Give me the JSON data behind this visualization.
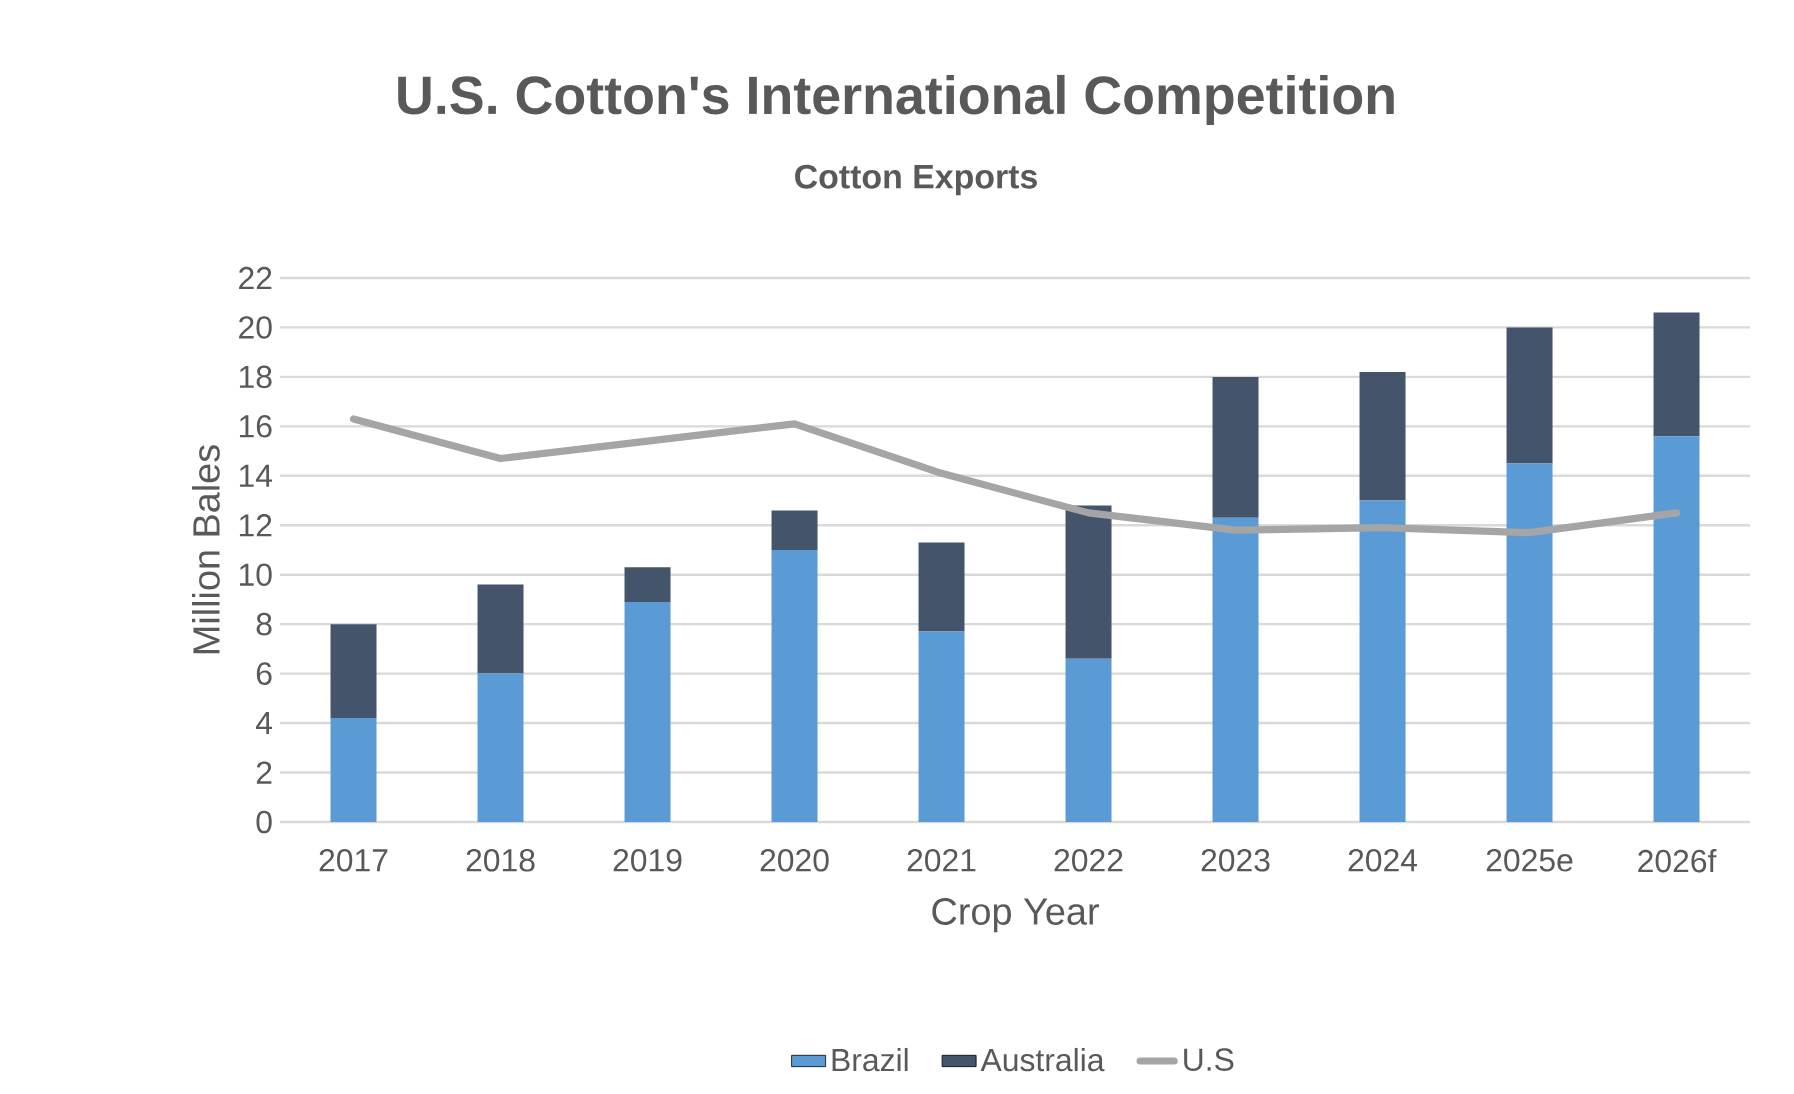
{
  "chart_data": {
    "type": "bar",
    "title": "U.S. Cotton's International Competition",
    "subtitle": "Cotton Exports",
    "xlabel": "Crop Year",
    "ylabel": "Million Bales",
    "categories": [
      "2017",
      "2018",
      "2019",
      "2020",
      "2021",
      "2022",
      "2023",
      "2024",
      "2025e",
      "2026f"
    ],
    "stacked": true,
    "series": [
      {
        "name": "Brazil",
        "color": "#5b9bd5",
        "values": [
          4.2,
          6.0,
          8.9,
          11.0,
          7.7,
          6.6,
          12.3,
          13.0,
          14.5,
          15.6
        ]
      },
      {
        "name": "Australia",
        "color": "#44546a",
        "values": [
          3.8,
          3.6,
          1.4,
          1.6,
          3.6,
          6.2,
          5.7,
          5.2,
          5.5,
          5.0
        ]
      },
      {
        "name": "U.S",
        "type": "line",
        "color": "#a5a5a5",
        "values": [
          16.3,
          14.7,
          15.4,
          16.1,
          14.1,
          12.5,
          11.8,
          11.9,
          11.7,
          12.5
        ]
      }
    ],
    "ylim": [
      0,
      22
    ],
    "yticks": [
      0,
      2,
      4,
      6,
      8,
      10,
      12,
      14,
      16,
      18,
      20,
      22
    ],
    "grid": "y",
    "legend": "bottom",
    "marker": "none",
    "line_style": "solid"
  }
}
